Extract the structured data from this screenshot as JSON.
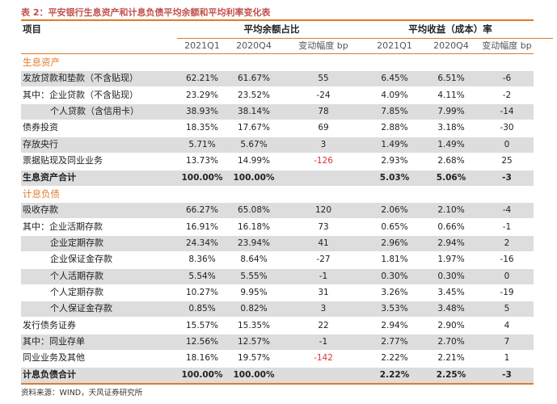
{
  "title": "表 2：平安银行生息资产和计息负债平均余额和平均利率变化表",
  "header": {
    "item": "项目",
    "group_balance": "平均余额占比",
    "group_rate": "平均收益（成本）率",
    "sub": [
      "2021Q1",
      "2020Q4",
      "变动幅度 bp",
      "2021Q1",
      "2020Q4",
      "变动幅度 bp"
    ]
  },
  "rows": [
    {
      "label": "生息资产",
      "section": true
    },
    {
      "label": "发放贷款和垫款（不含贴现）",
      "values": [
        "62.21%",
        "61.67%",
        "55",
        "6.45%",
        "6.51%",
        "-6"
      ],
      "shaded": true
    },
    {
      "label": "其中：企业贷款（不含贴现）",
      "values": [
        "23.29%",
        "23.52%",
        "-24",
        "4.09%",
        "4.11%",
        "-2"
      ]
    },
    {
      "label": "个人贷款（含信用卡）",
      "indent": true,
      "values": [
        "38.93%",
        "38.14%",
        "78",
        "7.85%",
        "7.99%",
        "-14"
      ],
      "shaded": true
    },
    {
      "label": "债券投资",
      "values": [
        "18.35%",
        "17.67%",
        "69",
        "2.88%",
        "3.18%",
        "-30"
      ]
    },
    {
      "label": "存放央行",
      "values": [
        "5.71%",
        "5.67%",
        "3",
        "1.49%",
        "1.49%",
        "0"
      ],
      "shaded": true
    },
    {
      "label": "票据贴现及同业业务",
      "values": [
        "13.73%",
        "14.99%",
        "-126",
        "2.93%",
        "2.68%",
        "25"
      ],
      "neg": [
        2
      ]
    },
    {
      "label": "生息资产合计",
      "total": true,
      "values": [
        "100.00%",
        "100.00%",
        "",
        "5.03%",
        "5.06%",
        "-3"
      ],
      "shaded": true
    },
    {
      "label": "计息负债",
      "section": true
    },
    {
      "label": "吸收存款",
      "values": [
        "66.27%",
        "65.08%",
        "120",
        "2.06%",
        "2.10%",
        "-4"
      ],
      "shaded": true
    },
    {
      "label": "其中：企业活期存款",
      "values": [
        "16.91%",
        "16.18%",
        "73",
        "0.65%",
        "0.66%",
        "-1"
      ]
    },
    {
      "label": "企业定期存款",
      "indent": true,
      "values": [
        "24.34%",
        "23.94%",
        "41",
        "2.96%",
        "2.94%",
        "2"
      ],
      "shaded": true
    },
    {
      "label": "企业保证金存款",
      "indent": true,
      "values": [
        "8.36%",
        "8.64%",
        "-27",
        "1.81%",
        "1.97%",
        "-16"
      ]
    },
    {
      "label": "个人活期存款",
      "indent": true,
      "values": [
        "5.54%",
        "5.55%",
        "-1",
        "0.30%",
        "0.30%",
        "0"
      ],
      "shaded": true
    },
    {
      "label": "个人定期存款",
      "indent": true,
      "values": [
        "10.27%",
        "9.95%",
        "31",
        "3.26%",
        "3.45%",
        "-19"
      ]
    },
    {
      "label": "个人保证金存款",
      "indent": true,
      "values": [
        "0.85%",
        "0.82%",
        "3",
        "3.53%",
        "3.48%",
        "5"
      ],
      "shaded": true
    },
    {
      "label": "发行债务证券",
      "values": [
        "15.57%",
        "15.35%",
        "22",
        "2.94%",
        "2.90%",
        "4"
      ]
    },
    {
      "label": "其中：同业存单",
      "values": [
        "12.56%",
        "12.57%",
        "-1",
        "2.77%",
        "2.70%",
        "7"
      ],
      "shaded": true
    },
    {
      "label": "同业业务及其他",
      "values": [
        "18.16%",
        "19.57%",
        "-142",
        "2.22%",
        "2.21%",
        "1"
      ],
      "neg": [
        2
      ]
    },
    {
      "label": "计息负债合计",
      "total": true,
      "values": [
        "100.00%",
        "100.00%",
        "",
        "2.22%",
        "2.25%",
        "-3"
      ],
      "shaded": true
    }
  ],
  "source": "资料来源：WIND，天风证券研究所",
  "colors": {
    "accent": "#e07a2a",
    "title": "#c0504d",
    "negative": "#e03131",
    "shade": "#dddddd"
  }
}
